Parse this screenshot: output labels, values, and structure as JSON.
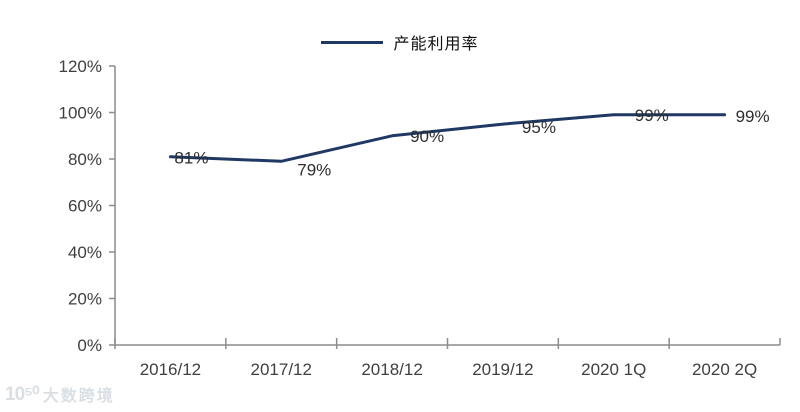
{
  "legend": {
    "label": "产能利用率"
  },
  "chart_data": {
    "type": "line",
    "title": "",
    "categories": [
      "2016/12",
      "2017/12",
      "2018/12",
      "2019/12",
      "2020 1Q",
      "2020 2Q"
    ],
    "series": [
      {
        "name": "产能利用率",
        "values": [
          81,
          79,
          90,
          95,
          99,
          99
        ]
      }
    ],
    "data_labels": [
      "81%",
      "79%",
      "90%",
      "95%",
      "99%",
      "99%"
    ],
    "ytick_labels": [
      "0%",
      "20%",
      "40%",
      "60%",
      "80%",
      "100%",
      "120%"
    ],
    "ylim": [
      0,
      120
    ],
    "xlabel": "",
    "ylabel": "",
    "grid": false,
    "legend_position": "top-center",
    "colors": {
      "line": "#1f3864",
      "axis": "#8c8c8c",
      "tick_text": "#404040",
      "data_label_text": "#2e2e2e"
    }
  },
  "watermark": {
    "logo_glyph": "10⁵⁰",
    "text": "大数跨境"
  }
}
